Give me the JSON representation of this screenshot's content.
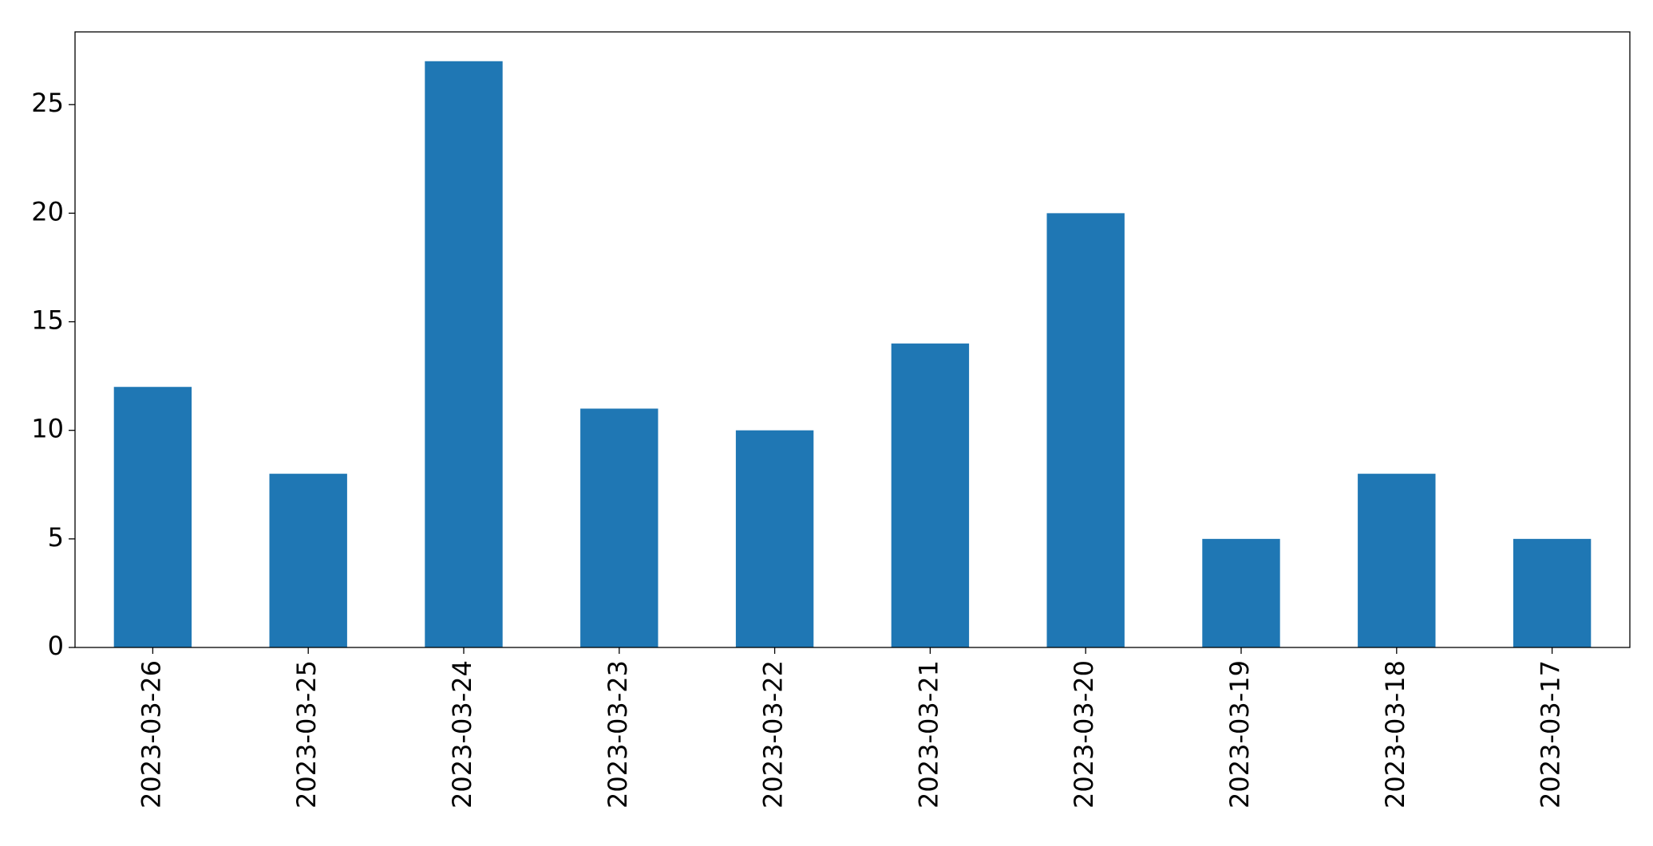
{
  "chart_data": {
    "type": "bar",
    "categories": [
      "2023-03-26",
      "2023-03-25",
      "2023-03-24",
      "2023-03-23",
      "2023-03-22",
      "2023-03-21",
      "2023-03-20",
      "2023-03-19",
      "2023-03-18",
      "2023-03-17"
    ],
    "values": [
      12,
      8,
      27,
      11,
      10,
      14,
      20,
      5,
      8,
      5
    ],
    "color": "#1f77b4",
    "ylim": [
      0,
      28.35
    ],
    "yticks": [
      0,
      5,
      10,
      15,
      20,
      25
    ],
    "grid": false
  }
}
